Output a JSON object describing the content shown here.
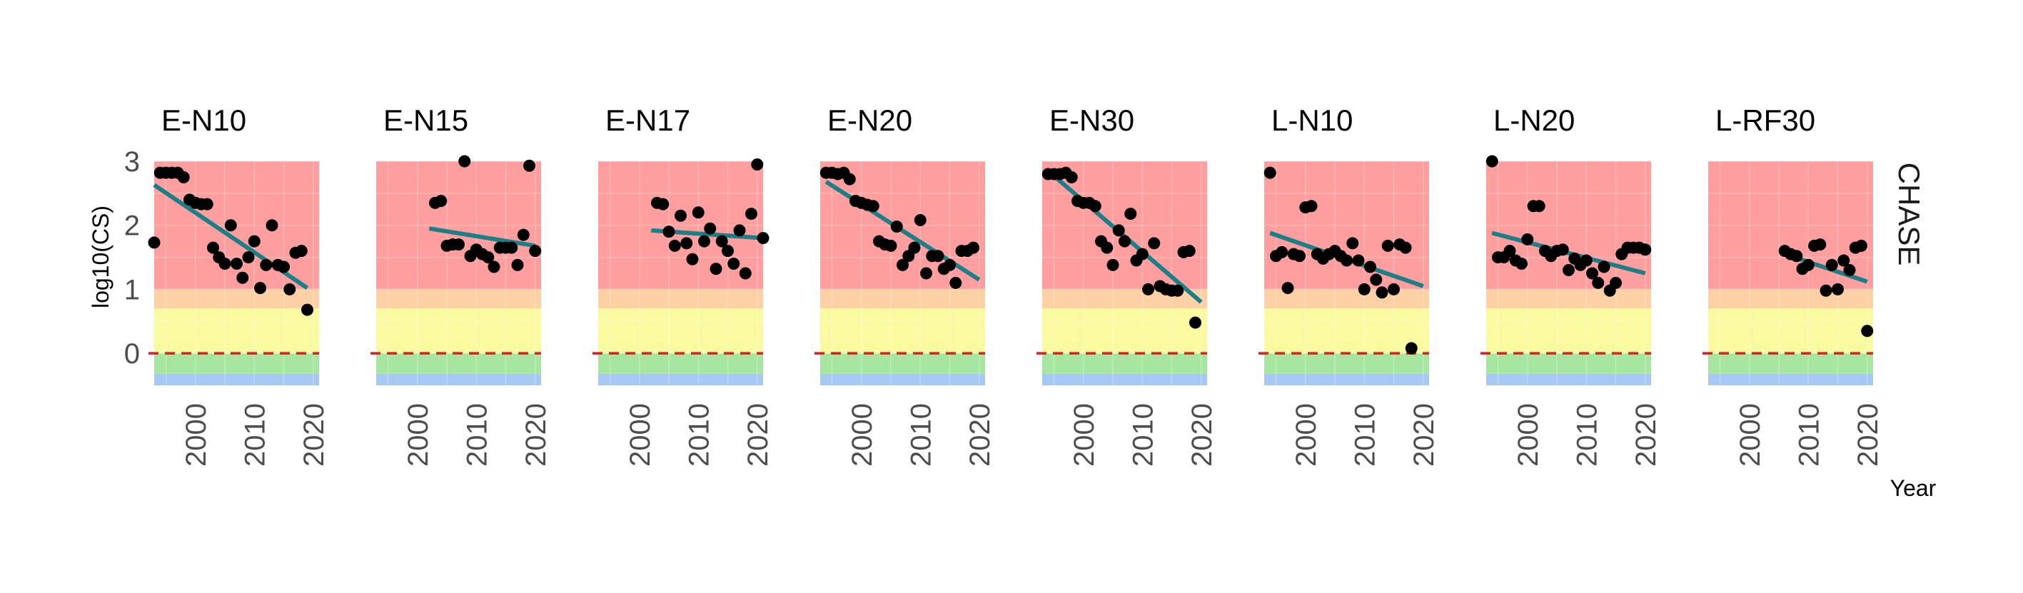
{
  "chart_data": {
    "type": "scatter",
    "ylabel": "log10(CS)",
    "xlabel": "Year",
    "facet_row_label": "CHASE",
    "xlim": [
      1993,
      2021
    ],
    "ylim": [
      -0.5,
      3
    ],
    "x_ticks": [
      2000,
      2010,
      2020
    ],
    "y_ticks": [
      0,
      1,
      2,
      3
    ],
    "reference_line": 0,
    "reference_color": "#e41a1c",
    "trend_color": "#1b7f87",
    "point_color": "#000000",
    "grid": true,
    "background_bands": [
      {
        "from": -0.5,
        "to": -0.32,
        "color": "#a6c8f2"
      },
      {
        "from": -0.32,
        "to": 0,
        "color": "#a7e6a1"
      },
      {
        "from": 0,
        "to": 0.7,
        "color": "#fafaa0"
      },
      {
        "from": 0.7,
        "to": 1.0,
        "color": "#fdd0a6"
      },
      {
        "from": 1.0,
        "to": 3.0,
        "color": "#ff9e9e"
      }
    ],
    "panels": [
      {
        "title": "E-N10",
        "points": [
          [
            1993,
            1.73
          ],
          [
            1994,
            2.82
          ],
          [
            1995,
            2.82
          ],
          [
            1996,
            2.82
          ],
          [
            1997,
            2.82
          ],
          [
            1998,
            2.75
          ],
          [
            1999,
            2.4
          ],
          [
            2000,
            2.35
          ],
          [
            2001,
            2.33
          ],
          [
            2002,
            2.33
          ],
          [
            2003,
            1.65
          ],
          [
            2004,
            1.5
          ],
          [
            2005,
            1.4
          ],
          [
            2006,
            2.0
          ],
          [
            2007,
            1.4
          ],
          [
            2008,
            1.18
          ],
          [
            2009,
            1.5
          ],
          [
            2010,
            1.75
          ],
          [
            2011,
            1.02
          ],
          [
            2012,
            1.38
          ],
          [
            2013,
            2.0
          ],
          [
            2014,
            1.38
          ],
          [
            2015,
            1.35
          ],
          [
            2016,
            1.0
          ],
          [
            2017,
            1.57
          ],
          [
            2018,
            1.6
          ],
          [
            2019,
            0.68
          ]
        ],
        "trend": [
          [
            1993,
            2.63
          ],
          [
            2019,
            1.02
          ]
        ]
      },
      {
        "title": "E-N15",
        "points": [
          [
            2003,
            2.35
          ],
          [
            2004,
            2.38
          ],
          [
            2005,
            1.68
          ],
          [
            2006,
            1.7
          ],
          [
            2007,
            1.7
          ],
          [
            2008,
            3.0
          ],
          [
            2009,
            1.52
          ],
          [
            2010,
            1.62
          ],
          [
            2011,
            1.55
          ],
          [
            2012,
            1.5
          ],
          [
            2013,
            1.35
          ],
          [
            2014,
            1.65
          ],
          [
            2015,
            1.65
          ],
          [
            2016,
            1.65
          ],
          [
            2017,
            1.38
          ],
          [
            2018,
            1.85
          ],
          [
            2019,
            2.93
          ],
          [
            2020,
            1.6
          ]
        ],
        "trend": [
          [
            2002,
            1.95
          ],
          [
            2020,
            1.68
          ]
        ]
      },
      {
        "title": "E-N17",
        "points": [
          [
            2003,
            2.35
          ],
          [
            2004,
            2.33
          ],
          [
            2005,
            1.9
          ],
          [
            2006,
            1.68
          ],
          [
            2007,
            2.15
          ],
          [
            2008,
            1.72
          ],
          [
            2009,
            1.47
          ],
          [
            2010,
            2.2
          ],
          [
            2011,
            1.75
          ],
          [
            2012,
            1.95
          ],
          [
            2013,
            1.32
          ],
          [
            2014,
            1.75
          ],
          [
            2015,
            1.6
          ],
          [
            2016,
            1.4
          ],
          [
            2017,
            1.92
          ],
          [
            2018,
            1.25
          ],
          [
            2019,
            2.18
          ],
          [
            2020,
            2.95
          ],
          [
            2021,
            1.8
          ]
        ],
        "trend": [
          [
            2002,
            1.92
          ],
          [
            2021,
            1.8
          ]
        ]
      },
      {
        "title": "E-N20",
        "points": [
          [
            1994,
            2.82
          ],
          [
            1995,
            2.82
          ],
          [
            1996,
            2.8
          ],
          [
            1997,
            2.82
          ],
          [
            1998,
            2.72
          ],
          [
            1999,
            2.38
          ],
          [
            2000,
            2.35
          ],
          [
            2001,
            2.32
          ],
          [
            2002,
            2.3
          ],
          [
            2003,
            1.75
          ],
          [
            2004,
            1.7
          ],
          [
            2005,
            1.68
          ],
          [
            2006,
            1.98
          ],
          [
            2007,
            1.38
          ],
          [
            2008,
            1.52
          ],
          [
            2009,
            1.65
          ],
          [
            2010,
            2.08
          ],
          [
            2011,
            1.25
          ],
          [
            2012,
            1.52
          ],
          [
            2013,
            1.52
          ],
          [
            2014,
            1.32
          ],
          [
            2015,
            1.38
          ],
          [
            2016,
            1.1
          ],
          [
            2017,
            1.6
          ],
          [
            2018,
            1.6
          ],
          [
            2019,
            1.65
          ]
        ],
        "trend": [
          [
            1994,
            2.68
          ],
          [
            2020,
            1.15
          ]
        ]
      },
      {
        "title": "E-N30",
        "points": [
          [
            1994,
            2.8
          ],
          [
            1995,
            2.8
          ],
          [
            1996,
            2.8
          ],
          [
            1997,
            2.82
          ],
          [
            1998,
            2.75
          ],
          [
            1999,
            2.38
          ],
          [
            2000,
            2.35
          ],
          [
            2001,
            2.35
          ],
          [
            2002,
            2.3
          ],
          [
            2003,
            1.75
          ],
          [
            2004,
            1.65
          ],
          [
            2005,
            1.38
          ],
          [
            2006,
            1.92
          ],
          [
            2007,
            1.75
          ],
          [
            2008,
            2.18
          ],
          [
            2009,
            1.45
          ],
          [
            2010,
            1.55
          ],
          [
            2011,
            1.0
          ],
          [
            2012,
            1.72
          ],
          [
            2013,
            1.05
          ],
          [
            2014,
            1.0
          ],
          [
            2015,
            0.98
          ],
          [
            2016,
            0.98
          ],
          [
            2017,
            1.58
          ],
          [
            2018,
            1.6
          ],
          [
            2019,
            0.48
          ]
        ],
        "trend": [
          [
            1994,
            2.85
          ],
          [
            2020,
            0.8
          ]
        ]
      },
      {
        "title": "L-N10",
        "points": [
          [
            1994,
            2.82
          ],
          [
            1995,
            1.52
          ],
          [
            1996,
            1.58
          ],
          [
            1997,
            1.02
          ],
          [
            1998,
            1.55
          ],
          [
            1999,
            1.52
          ],
          [
            2000,
            2.28
          ],
          [
            2001,
            2.3
          ],
          [
            2002,
            1.55
          ],
          [
            2003,
            1.48
          ],
          [
            2004,
            1.55
          ],
          [
            2005,
            1.6
          ],
          [
            2006,
            1.52
          ],
          [
            2007,
            1.45
          ],
          [
            2008,
            1.72
          ],
          [
            2009,
            1.45
          ],
          [
            2010,
            1.0
          ],
          [
            2011,
            1.35
          ],
          [
            2012,
            1.15
          ],
          [
            2013,
            0.95
          ],
          [
            2014,
            1.68
          ],
          [
            2015,
            1.0
          ],
          [
            2016,
            1.7
          ],
          [
            2017,
            1.65
          ],
          [
            2018,
            0.08
          ]
        ],
        "trend": [
          [
            1994,
            1.88
          ],
          [
            2020,
            1.05
          ]
        ]
      },
      {
        "title": "L-N20",
        "points": [
          [
            1994,
            3.0
          ],
          [
            1995,
            1.5
          ],
          [
            1996,
            1.5
          ],
          [
            1997,
            1.6
          ],
          [
            1998,
            1.45
          ],
          [
            1999,
            1.4
          ],
          [
            2000,
            1.78
          ],
          [
            2001,
            2.3
          ],
          [
            2002,
            2.3
          ],
          [
            2003,
            1.6
          ],
          [
            2004,
            1.52
          ],
          [
            2005,
            1.6
          ],
          [
            2006,
            1.62
          ],
          [
            2007,
            1.3
          ],
          [
            2008,
            1.48
          ],
          [
            2009,
            1.38
          ],
          [
            2010,
            1.45
          ],
          [
            2011,
            1.25
          ],
          [
            2012,
            1.1
          ],
          [
            2013,
            1.35
          ],
          [
            2014,
            0.98
          ],
          [
            2015,
            1.1
          ],
          [
            2016,
            1.55
          ],
          [
            2017,
            1.65
          ],
          [
            2018,
            1.65
          ],
          [
            2019,
            1.65
          ],
          [
            2020,
            1.62
          ]
        ],
        "trend": [
          [
            1994,
            1.88
          ],
          [
            2020,
            1.25
          ]
        ]
      },
      {
        "title": "L-RF30",
        "points": [
          [
            2006,
            1.6
          ],
          [
            2007,
            1.55
          ],
          [
            2008,
            1.52
          ],
          [
            2009,
            1.32
          ],
          [
            2010,
            1.38
          ],
          [
            2011,
            1.68
          ],
          [
            2012,
            1.7
          ],
          [
            2013,
            0.98
          ],
          [
            2014,
            1.38
          ],
          [
            2015,
            1.0
          ],
          [
            2016,
            1.45
          ],
          [
            2017,
            1.3
          ],
          [
            2018,
            1.65
          ],
          [
            2019,
            1.68
          ],
          [
            2020,
            0.35
          ]
        ],
        "trend": [
          [
            2006,
            1.55
          ],
          [
            2020,
            1.12
          ]
        ]
      }
    ]
  }
}
